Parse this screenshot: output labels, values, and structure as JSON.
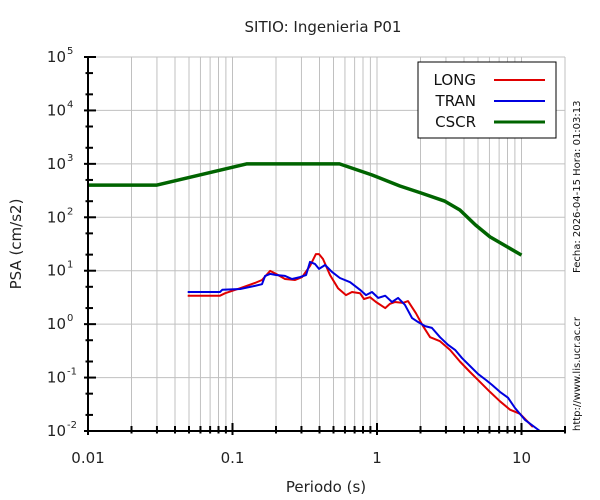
{
  "chart_data": {
    "type": "line",
    "title": "SITIO: Ingenieria P01",
    "xlabel": "Periodo (s)",
    "ylabel": "PSA (cm/s2)",
    "xscale": "log",
    "yscale": "log",
    "xlim": [
      0.01,
      20
    ],
    "ylim": [
      0.01,
      100000
    ],
    "xticks": [
      {
        "value": 0.01,
        "label": "0.01"
      },
      {
        "value": 0.1,
        "label": "0.1"
      },
      {
        "value": 1,
        "label": "1"
      },
      {
        "value": 10,
        "label": "10"
      }
    ],
    "yticks": [
      {
        "value": 100000,
        "base": "10",
        "exp": "5"
      },
      {
        "value": 10000,
        "base": "10",
        "exp": "4"
      },
      {
        "value": 1000,
        "base": "10",
        "exp": "3"
      },
      {
        "value": 100,
        "base": "10",
        "exp": "2"
      },
      {
        "value": 10,
        "base": "10",
        "exp": "1"
      },
      {
        "value": 1,
        "base": "10",
        "exp": "0"
      },
      {
        "value": 0.1,
        "base": "10",
        "exp": "-1"
      },
      {
        "value": 0.01,
        "base": "10",
        "exp": "-2"
      }
    ],
    "grid": true,
    "legend_position": "top-right",
    "series": [
      {
        "name": "LONG",
        "color": "#e00000",
        "x": [
          0.049,
          0.082,
          0.089,
          0.113,
          0.143,
          0.16,
          0.182,
          0.2,
          0.231,
          0.271,
          0.303,
          0.344,
          0.378,
          0.397,
          0.423,
          0.473,
          0.537,
          0.61,
          0.671,
          0.763,
          0.813,
          0.895,
          0.984,
          1.14,
          1.23,
          1.33,
          1.51,
          1.64,
          1.86,
          2.08,
          2.33,
          2.73,
          3.2,
          3.75,
          4.4,
          5.16,
          6.05,
          7.1,
          8.32,
          9.77,
          12.0
        ],
        "y": [
          3.4,
          3.4,
          3.8,
          4.7,
          5.9,
          6.7,
          9.9,
          8.7,
          7.0,
          6.7,
          7.6,
          12.3,
          20.5,
          20.5,
          16.6,
          8.3,
          4.7,
          3.5,
          4.0,
          3.8,
          2.95,
          3.2,
          2.6,
          2.0,
          2.4,
          2.6,
          2.5,
          2.7,
          1.6,
          0.92,
          0.57,
          0.48,
          0.33,
          0.2,
          0.127,
          0.083,
          0.054,
          0.036,
          0.025,
          0.021,
          0.0119
        ]
      },
      {
        "name": "TRAN",
        "color": "#0000e0",
        "x": [
          0.049,
          0.082,
          0.085,
          0.113,
          0.143,
          0.16,
          0.168,
          0.182,
          0.2,
          0.231,
          0.258,
          0.293,
          0.323,
          0.344,
          0.372,
          0.397,
          0.437,
          0.488,
          0.554,
          0.651,
          0.763,
          0.839,
          0.923,
          1.02,
          1.14,
          1.27,
          1.4,
          1.56,
          1.75,
          1.92,
          2.15,
          2.4,
          2.73,
          3.1,
          3.47,
          3.88,
          4.4,
          5.0,
          5.68,
          6.25,
          7.1,
          8.07,
          9.02,
          10.6,
          13.4
        ],
        "y": [
          4.0,
          4.0,
          4.4,
          4.55,
          5.2,
          5.6,
          8.0,
          8.7,
          8.3,
          8.0,
          7.0,
          7.6,
          8.3,
          14.6,
          13.4,
          10.8,
          12.8,
          9.5,
          7.3,
          6.1,
          4.4,
          3.5,
          4.0,
          3.1,
          3.4,
          2.6,
          3.1,
          2.3,
          1.3,
          1.1,
          0.92,
          0.85,
          0.57,
          0.41,
          0.33,
          0.23,
          0.165,
          0.117,
          0.09,
          0.073,
          0.054,
          0.042,
          0.027,
          0.016,
          0.01
        ]
      },
      {
        "name": "CSCR",
        "color": "#006400",
        "x": [
          0.01,
          0.03,
          0.125,
          0.55,
          0.92,
          1.44,
          2.02,
          2.95,
          3.75,
          4.8,
          6.05,
          10
        ],
        "y": [
          400,
          400,
          1000,
          1000,
          620,
          385,
          285,
          200,
          137,
          72,
          43,
          19.6
        ]
      }
    ]
  },
  "side_labels": {
    "date_time": "Fecha: 2026-04-15  Hora: 01:03:13",
    "url": "http://www.lis.ucr.ac.cr"
  }
}
